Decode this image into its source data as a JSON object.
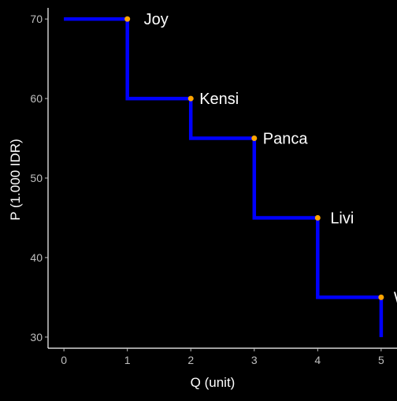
{
  "chart_data": {
    "type": "line",
    "step": true,
    "title": "",
    "xlabel": "Q (unit)",
    "ylabel": "P (1.000 IDR)",
    "xlim": [
      -0.25,
      5.25
    ],
    "ylim": [
      28.6,
      71.4
    ],
    "xticks": [
      0,
      1,
      2,
      3,
      4,
      5
    ],
    "yticks": [
      30,
      40,
      50,
      60,
      70
    ],
    "grid": false,
    "legend": "none",
    "line_color": "#0000FF",
    "point_color": "#FFA500",
    "background": "#000000",
    "text_color": "#FFFFFF",
    "tick_label_color": "#BFBFBF",
    "step_path": [
      {
        "x": 0,
        "y": 70
      },
      {
        "x": 1,
        "y": 70
      },
      {
        "x": 1,
        "y": 60
      },
      {
        "x": 2,
        "y": 60
      },
      {
        "x": 2,
        "y": 55
      },
      {
        "x": 3,
        "y": 55
      },
      {
        "x": 3,
        "y": 45
      },
      {
        "x": 4,
        "y": 45
      },
      {
        "x": 4,
        "y": 35
      },
      {
        "x": 5,
        "y": 35
      },
      {
        "x": 5,
        "y": 30
      }
    ],
    "points": [
      {
        "label": "Joy",
        "x": 1,
        "y": 70
      },
      {
        "label": "Kensi",
        "x": 2,
        "y": 60
      },
      {
        "label": "Panca",
        "x": 3,
        "y": 55
      },
      {
        "label": "Livi",
        "x": 4,
        "y": 45
      },
      {
        "label": "Will",
        "x": 5,
        "y": 35
      }
    ]
  }
}
